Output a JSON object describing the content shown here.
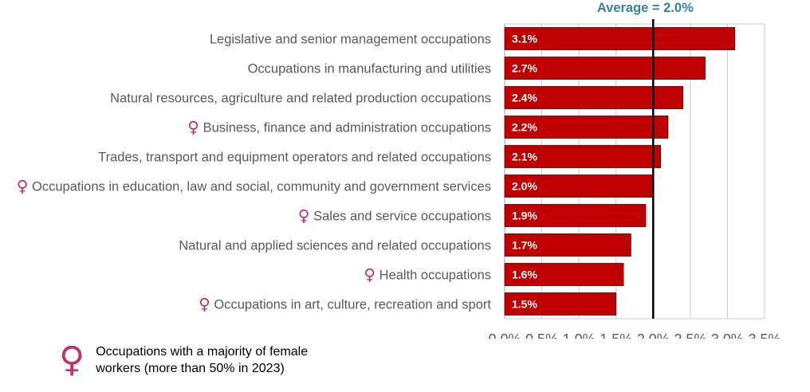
{
  "chart_data": {
    "type": "bar",
    "orientation": "horizontal",
    "categories": [
      "Legislative and senior management occupations",
      "Occupations in manufacturing and utilities",
      "Natural resources, agriculture and related production occupations",
      "Business, finance and administration occupations",
      "Trades, transport and equipment operators and related occupations",
      "Occupations in education, law and social, community and government services",
      "Sales and service occupations",
      "Natural and applied sciences and related occupations",
      "Health occupations",
      "Occupations in art, culture, recreation and sport"
    ],
    "values": [
      3.1,
      2.7,
      2.4,
      2.2,
      2.1,
      2.0,
      1.9,
      1.7,
      1.6,
      1.5
    ],
    "value_labels": [
      "3.1%",
      "2.7%",
      "2.4%",
      "2.2%",
      "2.1%",
      "2.0%",
      "1.9%",
      "1.7%",
      "1.6%",
      "1.5%"
    ],
    "female_majority": [
      false,
      false,
      false,
      true,
      false,
      true,
      true,
      false,
      true,
      true
    ],
    "xlim": [
      0,
      3.5
    ],
    "x_ticks": [
      0,
      0.5,
      1.0,
      1.5,
      2.0,
      2.5,
      3.0,
      3.5
    ],
    "x_tick_labels": [
      "0.0%",
      "0.5%",
      "1.0%",
      "1.5%",
      "2.0%",
      "2.5%",
      "3.0%",
      "3.5%"
    ],
    "average": 2.0,
    "average_label": "Average = 2.0%",
    "grid": "vertical",
    "bar_color": "#C00000",
    "average_label_color": "#31859C",
    "title": "",
    "xlabel": "",
    "ylabel": ""
  },
  "legend": {
    "icon": "female-symbol-icon",
    "symbol": "♀",
    "icon_color": "#C0306A",
    "text": "Occupations with a majority of female workers (more than 50% in 2023)"
  }
}
